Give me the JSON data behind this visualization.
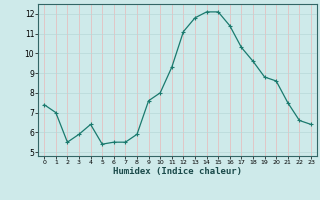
{
  "x": [
    0,
    1,
    2,
    3,
    4,
    5,
    6,
    7,
    8,
    9,
    10,
    11,
    12,
    13,
    14,
    15,
    16,
    17,
    18,
    19,
    20,
    21,
    22,
    23
  ],
  "y": [
    7.4,
    7.0,
    5.5,
    5.9,
    6.4,
    5.4,
    5.5,
    5.5,
    5.9,
    7.6,
    8.0,
    9.3,
    11.1,
    11.8,
    12.1,
    12.1,
    11.4,
    10.3,
    9.6,
    8.8,
    8.6,
    7.5,
    6.6,
    6.4
  ],
  "xlim": [
    -0.5,
    23.5
  ],
  "ylim": [
    4.8,
    12.5
  ],
  "yticks": [
    5,
    6,
    7,
    8,
    9,
    10,
    11,
    12
  ],
  "xticks": [
    0,
    1,
    2,
    3,
    4,
    5,
    6,
    7,
    8,
    9,
    10,
    11,
    12,
    13,
    14,
    15,
    16,
    17,
    18,
    19,
    20,
    21,
    22,
    23
  ],
  "xlabel": "Humidex (Indice chaleur)",
  "line_color": "#1a7a6e",
  "marker": "+",
  "background_color": "#ceeaea",
  "grid_color_x": "#e8b8b8",
  "grid_color_y": "#b8d8d8"
}
